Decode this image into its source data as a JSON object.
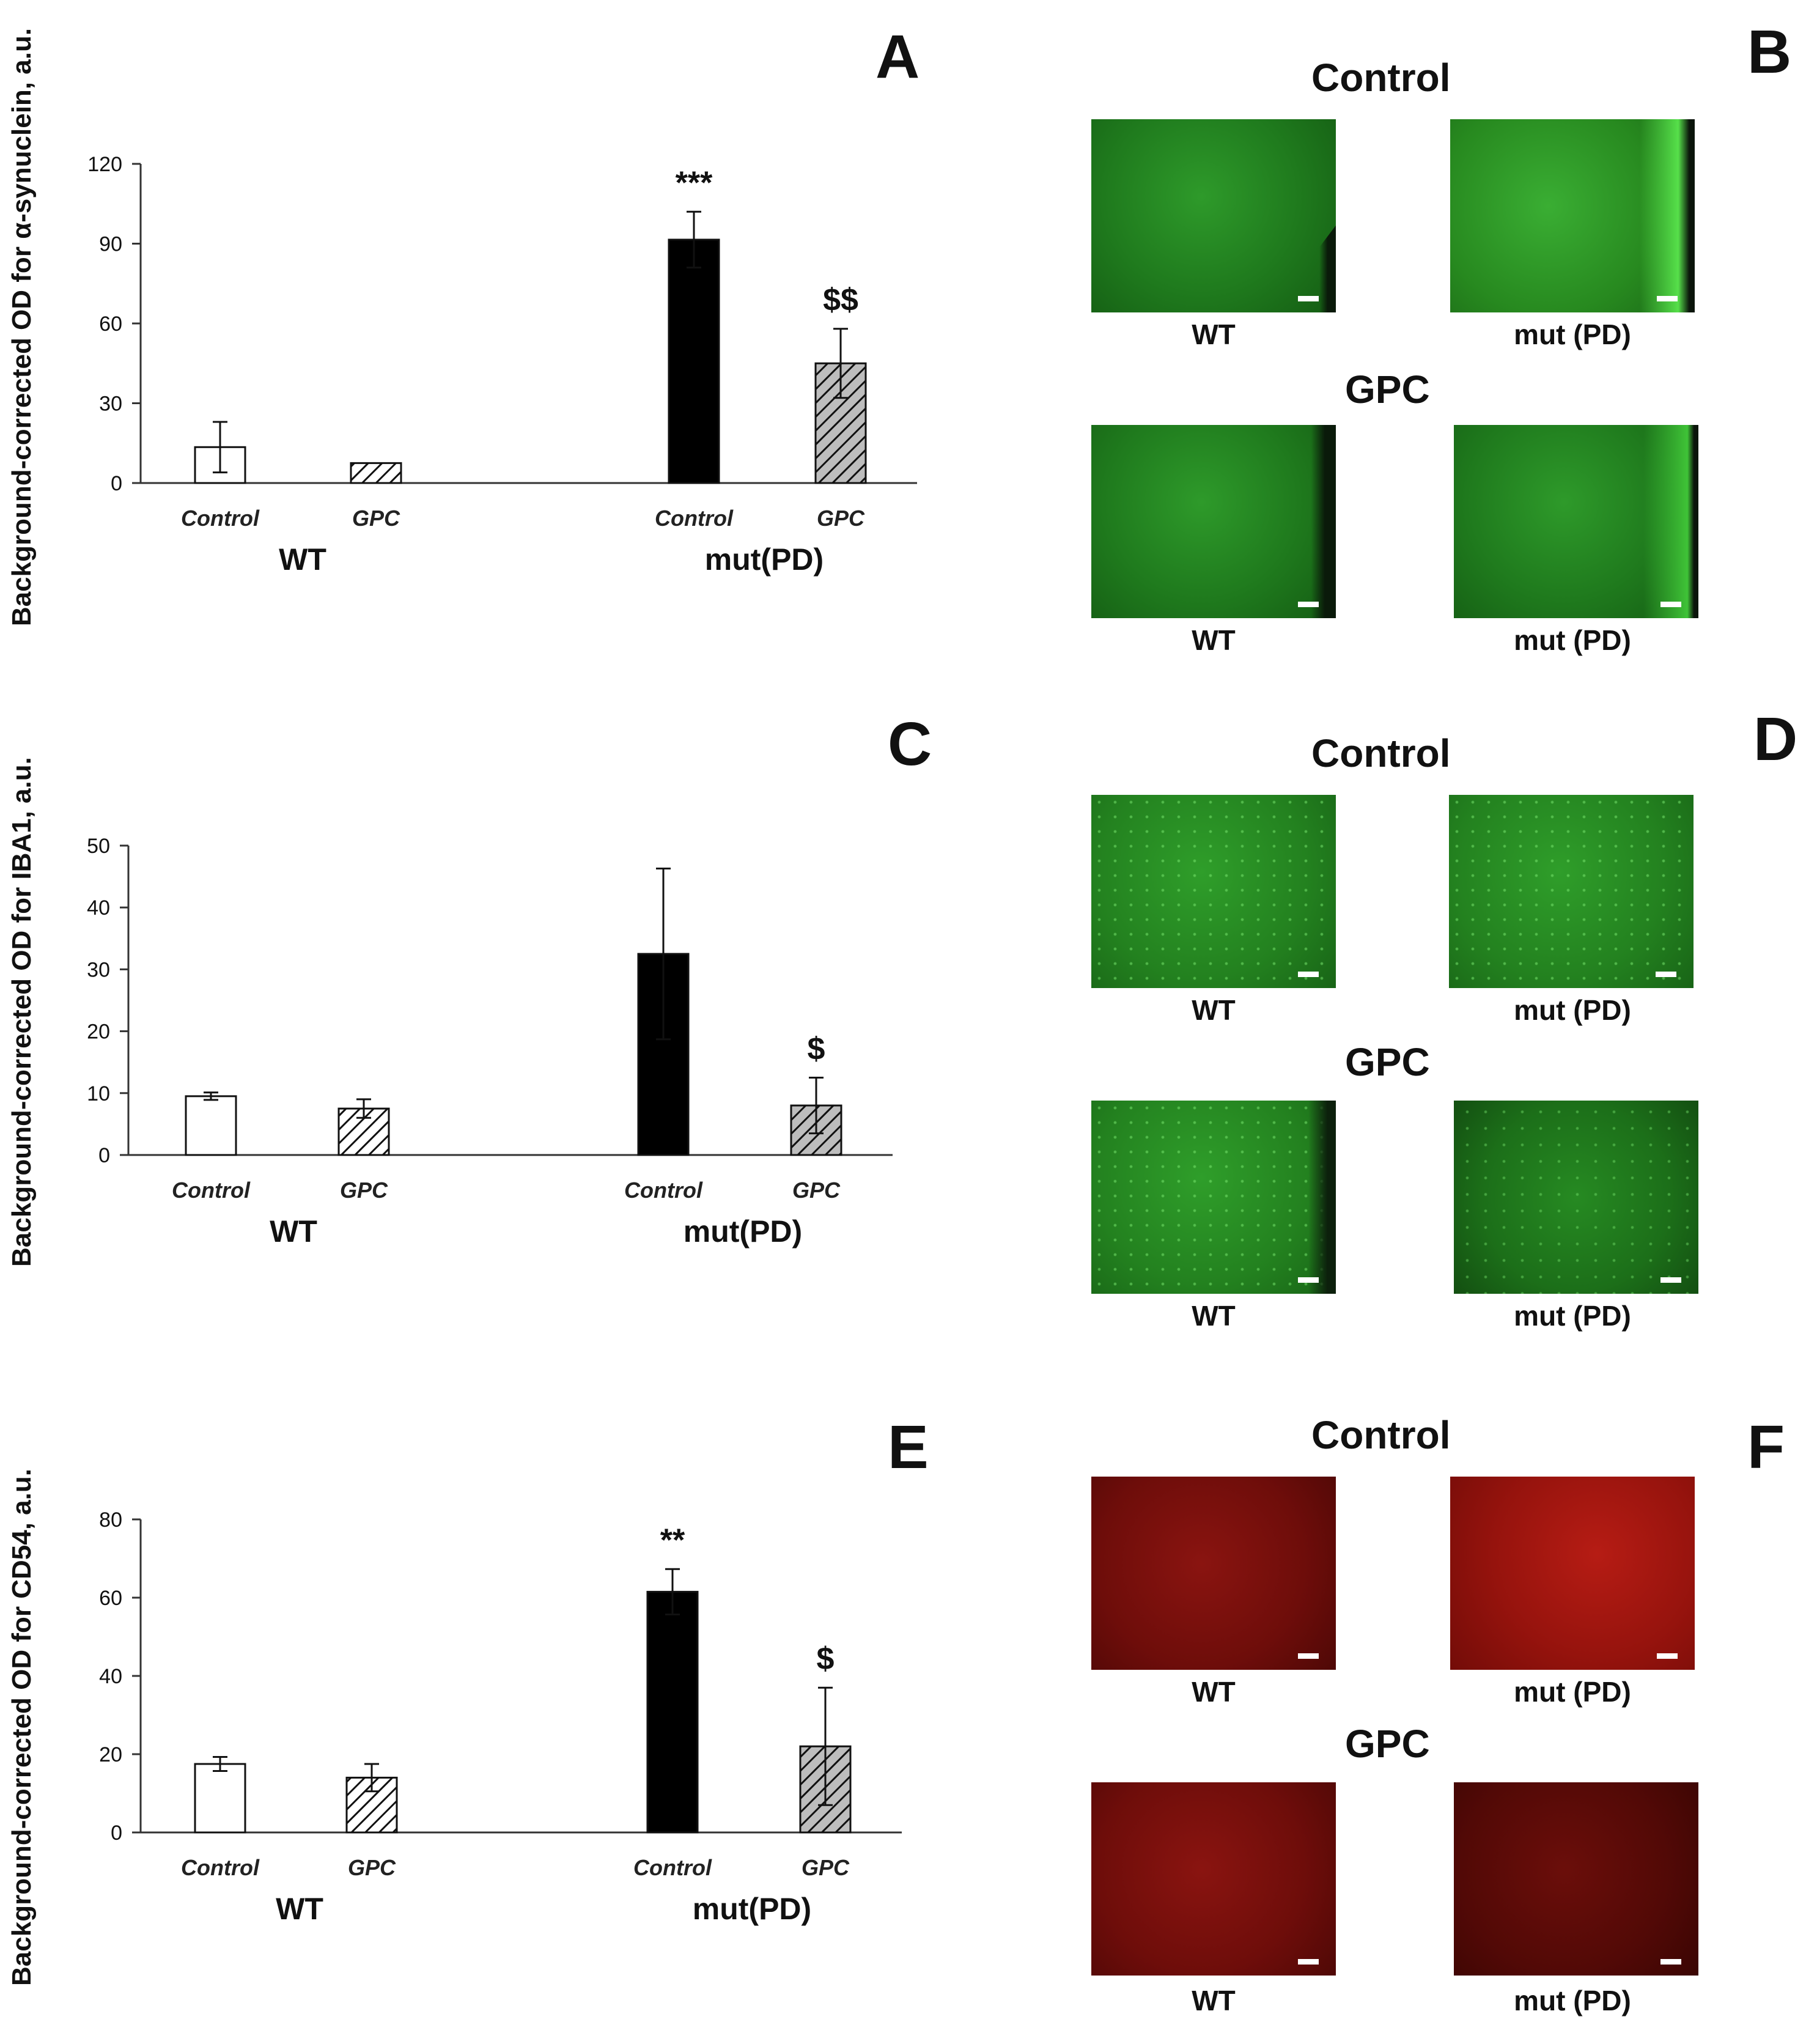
{
  "panels": {
    "A": "A",
    "B": "B",
    "C": "C",
    "D": "D",
    "E": "E",
    "F": "F"
  },
  "chart_data": [
    {
      "type": "bar",
      "panel": "A",
      "ylabel": "Background-corrected OD for α-synuclein, a.u.",
      "ylim": [
        0,
        120
      ],
      "yticks": [
        0,
        30,
        60,
        90,
        120
      ],
      "categories": [
        "Control",
        "GPC",
        "Control",
        "GPC"
      ],
      "groups": [
        "WT",
        "mut(PD)"
      ],
      "values": [
        13.5,
        7.5,
        91.5,
        45
      ],
      "errors": [
        9.5,
        0,
        10.5,
        13
      ],
      "fills": [
        "white",
        "hatch",
        "black",
        "hatch-gray"
      ],
      "annotations": [
        "",
        "",
        "***",
        "$$"
      ]
    },
    {
      "type": "bar",
      "panel": "C",
      "ylabel": "Background-corrected OD for IBA1, a.u.",
      "ylim": [
        0,
        50
      ],
      "yticks": [
        0,
        10,
        20,
        30,
        40,
        50
      ],
      "categories": [
        "Control",
        "GPC",
        "Control",
        "GPC"
      ],
      "groups": [
        "WT",
        "mut(PD)"
      ],
      "values": [
        9.5,
        7.5,
        32.5,
        8
      ],
      "errors": [
        0.6,
        1.5,
        13.8,
        4.5
      ],
      "fills": [
        "white",
        "hatch",
        "black",
        "hatch-gray"
      ],
      "annotations": [
        "",
        "",
        "",
        "$"
      ]
    },
    {
      "type": "bar",
      "panel": "E",
      "ylabel": "Background-corrected OD for CD54, a.u.",
      "ylim": [
        0,
        80
      ],
      "yticks": [
        0,
        20,
        40,
        60,
        80
      ],
      "categories": [
        "Control",
        "GPC",
        "Control",
        "GPC"
      ],
      "groups": [
        "WT",
        "mut(PD)"
      ],
      "values": [
        17.5,
        14,
        61.5,
        22
      ],
      "errors": [
        1.8,
        3.5,
        5.8,
        15
      ],
      "fills": [
        "white",
        "hatch",
        "black",
        "hatch-gray"
      ],
      "annotations": [
        "",
        "",
        "**",
        "$"
      ]
    }
  ],
  "micrographs": {
    "B": {
      "control_title": "Control",
      "gpc_title": "GPC",
      "wt_label": "WT",
      "mut_label": "mut (PD)",
      "color": "#1f7a1d"
    },
    "D": {
      "control_title": "Control",
      "gpc_title": "GPC",
      "wt_label": "WT",
      "mut_label": "mut (PD)",
      "color": "#23811f"
    },
    "F": {
      "control_title": "Control",
      "gpc_title": "GPC",
      "wt_label": "WT",
      "mut_label": "mut (PD)",
      "color": "#6e0d0a"
    }
  }
}
